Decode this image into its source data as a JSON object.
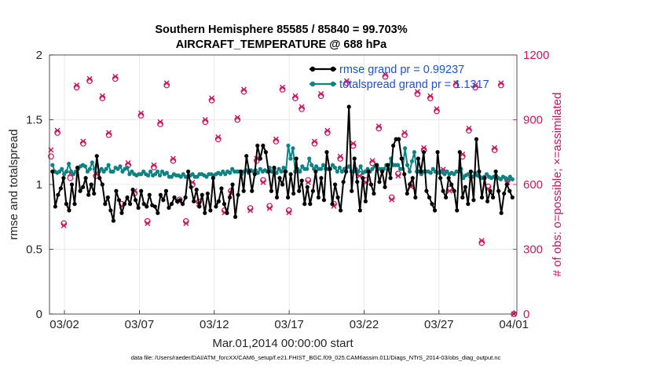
{
  "chart_data": {
    "type": "line",
    "title": [
      "Southern Hemisphere 85585 / 85840 = 99.703%",
      "AIRCRAFT_TEMPERATURE @ 688 hPa"
    ],
    "xlabel": "Mar.01,2014 00:00:00 start",
    "ylabel": "rmse and totalspread",
    "y2label": "# of obs: o=possible; ×=assimilated",
    "x_ticks": [
      "03/02",
      "03/07",
      "03/12",
      "03/17",
      "03/22",
      "03/27",
      "04/01"
    ],
    "x_tick_days": [
      1,
      6,
      11,
      16,
      21,
      26,
      31
    ],
    "xlim_days": [
      0,
      31.2
    ],
    "ylim": [
      0,
      2
    ],
    "y_ticks": [
      "0",
      "0.5",
      "1",
      "1.5",
      "2"
    ],
    "y2lim": [
      0,
      1200
    ],
    "y2_ticks": [
      "0",
      "300",
      "600",
      "900",
      "1200"
    ],
    "grid": true,
    "legend_position": "top-right",
    "series": [
      {
        "name": "rmse grand pr = 0.99237",
        "color": "#000000",
        "marker": "dot",
        "values": [
          1.1,
          0.83,
          0.92,
          0.97,
          1.05,
          0.85,
          0.8,
          1.0,
          0.85,
          1.13,
          0.95,
          0.98,
          1.05,
          0.92,
          1.0,
          0.93,
          1.22,
          1.05,
          1.0,
          0.85,
          0.9,
          0.8,
          0.72,
          0.95,
          0.88,
          0.78,
          0.85,
          0.9,
          0.85,
          0.96,
          0.88,
          0.82,
          0.95,
          0.85,
          0.83,
          0.92,
          0.84,
          0.83,
          0.78,
          0.92,
          0.88,
          0.95,
          0.82,
          0.85,
          0.9,
          0.87,
          0.88,
          0.85,
          0.9,
          1.1,
          0.98,
          0.87,
          0.96,
          0.83,
          0.92,
          0.78,
          0.93,
          0.8,
          1.05,
          0.83,
          0.87,
          0.97,
          0.85,
          0.78,
          0.9,
          1.0,
          0.75,
          0.92,
          1.1,
          0.95,
          1.22,
          1.1,
          0.95,
          1.08,
          1.3,
          1.2,
          1.3,
          1.25,
          1.1,
          0.95,
          1.13,
          0.9,
          1.05,
          1.0,
          1.1,
          0.9,
          1.08,
          0.93,
          1.2,
          0.95,
          1.03,
          0.85,
          0.98,
          0.85,
          0.95,
          1.1,
          0.9,
          1.05,
          0.88,
          1.25,
          1.12,
          0.85,
          1.0,
          0.9,
          0.8,
          1.02,
          1.1,
          1.6,
          0.95,
          1.2,
          1.02,
          0.8,
          1.05,
          0.87,
          1.1,
          1.0,
          0.93,
          1.15,
          1.02,
          1.1,
          0.98,
          1.15,
          1.05,
          1.3,
          1.35,
          1.35,
          1.2,
          1.08,
          0.93,
          1.0,
          1.05,
          0.9,
          1.2,
          1.1,
          1.25,
          0.95,
          0.9,
          0.85,
          0.8,
          1.25,
          1.05,
          0.95,
          0.9,
          1.05,
          1.0,
          0.95,
          0.8,
          1.25,
          0.9,
          0.98,
          0.85,
          1.1,
          0.88,
          1.35,
          1.1,
          0.9,
          1.05,
          0.87,
          0.95,
          0.9,
          1.1,
          0.95,
          0.78,
          0.93,
          1.0,
          0.95,
          0.9
        ]
      },
      {
        "name": "totalspread grand pr = 1.1317",
        "color": "#0f8282",
        "marker": "dot",
        "values": [
          1.15,
          1.1,
          1.09,
          1.1,
          1.12,
          1.08,
          1.1,
          1.16,
          1.1,
          1.08,
          1.1,
          1.12,
          1.14,
          1.15,
          1.14,
          1.1,
          1.12,
          1.17,
          1.12,
          1.15,
          1.1,
          1.12,
          1.1,
          1.12,
          1.15,
          1.1,
          1.1,
          1.13,
          1.12,
          1.14,
          1.1,
          1.12,
          1.13,
          1.08,
          1.1,
          1.08,
          1.07,
          1.08,
          1.08,
          1.1,
          1.08,
          1.07,
          1.1,
          1.07,
          1.08,
          1.1,
          1.07,
          1.1,
          1.08,
          1.09,
          1.06,
          1.06,
          1.08,
          1.07,
          1.07,
          1.06,
          1.08,
          1.06,
          1.06,
          1.07,
          1.08,
          1.06,
          1.06,
          1.08,
          1.08,
          1.07,
          1.06,
          1.08,
          1.08,
          1.07,
          1.08,
          1.09,
          1.08,
          1.1,
          1.08,
          1.1,
          1.09,
          1.12,
          1.1,
          1.1,
          1.1,
          1.08,
          1.1,
          1.11,
          1.09,
          1.11,
          1.1,
          1.11,
          1.09,
          1.12,
          1.1,
          1.11,
          1.1,
          1.13,
          1.1,
          1.12,
          1.09,
          1.12,
          1.1,
          1.13,
          1.1,
          1.3,
          1.2,
          1.28,
          1.1,
          1.12,
          1.1,
          1.14,
          1.12,
          1.12,
          1.2,
          1.15,
          1.12,
          1.14,
          1.12,
          1.12,
          1.15,
          1.12,
          1.12,
          1.12,
          1.15,
          1.13,
          1.1,
          1.13,
          1.1,
          1.12,
          1.13,
          1.14,
          1.1,
          1.1,
          1.12,
          1.1,
          1.14,
          1.09,
          1.1,
          1.12,
          1.1,
          1.12,
          1.14,
          1.15,
          1.12,
          1.12,
          1.12,
          1.15,
          1.12,
          1.2,
          1.15,
          1.15,
          1.15,
          1.12,
          1.12,
          1.28,
          1.15,
          1.1,
          1.18,
          1.25,
          1.1,
          1.1,
          1.08,
          1.1,
          1.1,
          1.1,
          1.09,
          1.12,
          1.1,
          1.09,
          1.1,
          1.1,
          1.08,
          1.1,
          1.08,
          1.09,
          1.08,
          1.1,
          1.1,
          1.12,
          1.05,
          1.07,
          1.08,
          1.06,
          1.06,
          1.09,
          1.07,
          1.06,
          1.05,
          1.06,
          1.08,
          1.06,
          1.05,
          1.06,
          1.07,
          1.05,
          1.04,
          1.06,
          1.05,
          1.04,
          1.06,
          1.04
        ]
      },
      {
        "name": "obs possible",
        "color": "#d0145a",
        "marker": "o",
        "axis": "right",
        "values": [
          730,
          840,
          420,
          630,
          1050,
          790,
          1080,
          640,
          1000,
          830,
          1090,
          510,
          690,
          560,
          920,
          430,
          680,
          880,
          1060,
          710,
          530,
          430,
          600,
          520,
          890,
          990,
          810,
          480,
          570,
          900,
          1030,
          490,
          710,
          620,
          500,
          800,
          1040,
          480,
          1000,
          950,
          620,
          790,
          1010,
          840,
          510,
          720,
          1070,
          780,
          650,
          620,
          700,
          860,
          1100,
          540,
          650,
          830,
          600,
          1020,
          760,
          1000,
          940,
          660,
          580,
          1060,
          730,
          850,
          1050,
          330,
          590,
          760,
          1060,
          620,
          0
        ]
      },
      {
        "name": "obs assimilated",
        "color": "#d0145a",
        "marker": "x",
        "axis": "right",
        "values": [
          760,
          850,
          410,
          650,
          1060,
          800,
          1090,
          650,
          1010,
          840,
          1100,
          500,
          700,
          570,
          930,
          420,
          690,
          890,
          1070,
          720,
          520,
          420,
          610,
          510,
          900,
          1000,
          820,
          470,
          560,
          910,
          1040,
          480,
          720,
          610,
          490,
          810,
          1050,
          470,
          1010,
          960,
          610,
          800,
          1020,
          850,
          500,
          730,
          1080,
          790,
          640,
          610,
          710,
          870,
          1110,
          530,
          640,
          840,
          590,
          1030,
          770,
          1010,
          950,
          670,
          570,
          1070,
          740,
          860,
          1060,
          340,
          580,
          770,
          1070,
          610,
          0
        ]
      }
    ]
  },
  "footer": "data file: /Users/raeder/DAI/ATM_forcXX/CAM6_setup/f.e21.FHIST_BGC.f09_025.CAM6assim.011/Diags_NTrS_2014-03/obs_diag_output.nc"
}
